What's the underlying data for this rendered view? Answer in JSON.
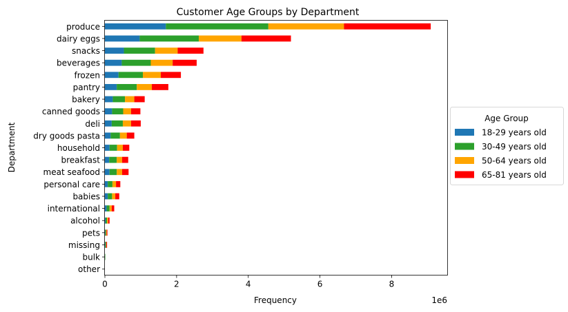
{
  "chart_data": {
    "type": "bar",
    "orientation": "horizontal",
    "stacked": true,
    "title": "Customer Age Groups by Department",
    "xlabel": "Frequency",
    "ylabel": "Department",
    "x_offset_label": "1e6",
    "xlim": [
      0,
      9.55
    ],
    "xticks": [
      0,
      2,
      4,
      6,
      8
    ],
    "grid": false,
    "legend": {
      "title": "Age Group",
      "placement": "outside-right"
    },
    "categories": [
      "produce",
      "dairy eggs",
      "snacks",
      "beverages",
      "frozen",
      "pantry",
      "bakery",
      "canned goods",
      "deli",
      "dry goods pasta",
      "household",
      "breakfast",
      "meat seafood",
      "personal care",
      "babies",
      "international",
      "alcohol",
      "pets",
      "missing",
      "bulk",
      "other"
    ],
    "series": [
      {
        "name": "18-29 years old",
        "color": "#1f77b4",
        "values": [
          1.7,
          0.97,
          0.53,
          0.47,
          0.38,
          0.33,
          0.22,
          0.2,
          0.19,
          0.16,
          0.13,
          0.12,
          0.13,
          0.08,
          0.08,
          0.05,
          0.02,
          0.01,
          0.01,
          0.0,
          0.0
        ]
      },
      {
        "name": "30-49 years old",
        "color": "#2ca02c",
        "values": [
          2.86,
          1.65,
          0.87,
          0.81,
          0.68,
          0.56,
          0.34,
          0.31,
          0.31,
          0.26,
          0.21,
          0.21,
          0.2,
          0.13,
          0.12,
          0.08,
          0.04,
          0.02,
          0.02,
          0.01,
          0.0
        ]
      },
      {
        "name": "50-64 years old",
        "color": "#ffa500",
        "values": [
          2.11,
          1.19,
          0.63,
          0.61,
          0.5,
          0.42,
          0.26,
          0.22,
          0.23,
          0.19,
          0.16,
          0.15,
          0.15,
          0.1,
          0.09,
          0.06,
          0.03,
          0.02,
          0.01,
          0.0,
          0.0
        ]
      },
      {
        "name": "65-81 years old",
        "color": "#ff0000",
        "values": [
          2.42,
          1.38,
          0.72,
          0.67,
          0.56,
          0.46,
          0.29,
          0.26,
          0.27,
          0.21,
          0.18,
          0.17,
          0.18,
          0.12,
          0.11,
          0.07,
          0.04,
          0.02,
          0.02,
          0.0,
          0.0
        ]
      }
    ]
  }
}
